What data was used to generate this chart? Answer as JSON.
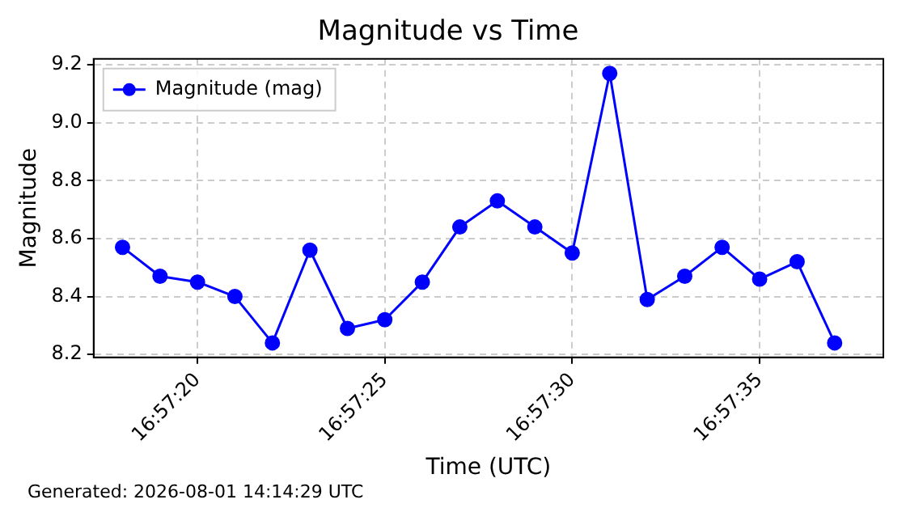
{
  "chart_data": {
    "type": "line",
    "title": "Magnitude vs Time",
    "xlabel": "Time (UTC)",
    "ylabel": "Magnitude",
    "x": [
      16.955,
      16.955278,
      16.955556,
      16.955833,
      16.956111,
      16.956389,
      16.956667,
      16.956944,
      16.957222,
      16.9575,
      16.957778,
      16.958056,
      16.958333,
      16.958611,
      16.958889,
      16.959167,
      16.959444,
      16.959722,
      16.96,
      16.960278
    ],
    "series": [
      {
        "name": "Magnitude (mag)",
        "color": "#0000ff",
        "values": [
          8.57,
          8.47,
          8.45,
          8.4,
          8.24,
          8.56,
          8.29,
          8.32,
          8.45,
          8.64,
          8.73,
          8.64,
          8.55,
          9.17,
          8.39,
          8.47,
          8.57,
          8.46,
          8.52,
          8.24
        ]
      }
    ],
    "xlim": [
      16.954786,
      16.960639
    ],
    "xticks": [
      {
        "value": 16.955556,
        "label": "16:57:20"
      },
      {
        "value": 16.956944,
        "label": "16:57:25"
      },
      {
        "value": 16.958333,
        "label": "16:57:30"
      },
      {
        "value": 16.959722,
        "label": "16:57:35"
      }
    ],
    "ylim": [
      8.19,
      9.22
    ],
    "yticks": [
      {
        "value": 8.2,
        "label": "8.2"
      },
      {
        "value": 8.4,
        "label": "8.4"
      },
      {
        "value": 8.6,
        "label": "8.6"
      },
      {
        "value": 8.8,
        "label": "8.8"
      },
      {
        "value": 9,
        "label": "9.0"
      },
      {
        "value": 9.2,
        "label": "9.2"
      }
    ],
    "grid": true,
    "legend": "top left",
    "marker": "circle",
    "line_style": "solid",
    "annotations": [
      "Generated: 2026-08-01 14:14:29 UTC"
    ]
  }
}
